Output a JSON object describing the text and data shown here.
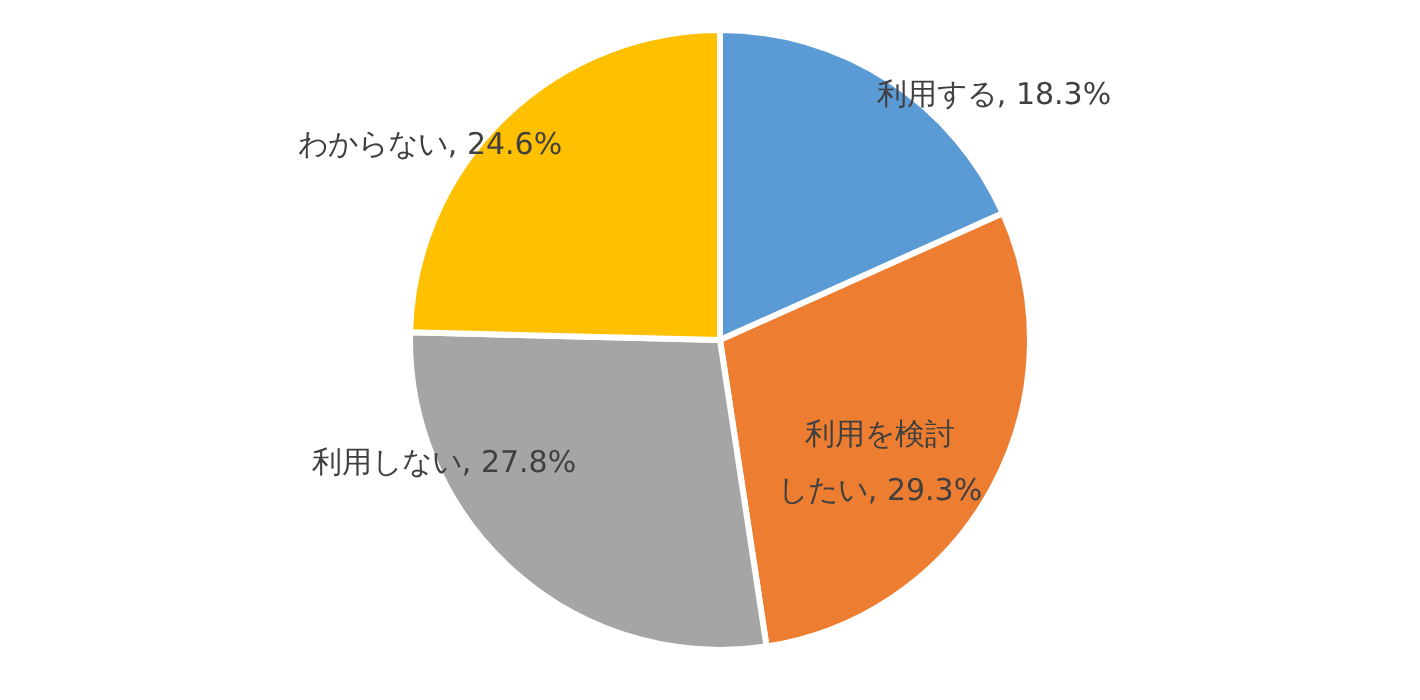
{
  "chart_data": {
    "type": "pie",
    "categories": [
      "利用する",
      "利用を検討したい",
      "利用しない",
      "わからない"
    ],
    "values": [
      18.3,
      29.3,
      27.8,
      24.6
    ],
    "value_labels": [
      "18.3%",
      "29.3%",
      "27.8%",
      "24.6%"
    ],
    "colors": [
      "#5b9bd5",
      "#ed7d31",
      "#a5a5a5",
      "#ffc000"
    ],
    "data_labels": true
  }
}
